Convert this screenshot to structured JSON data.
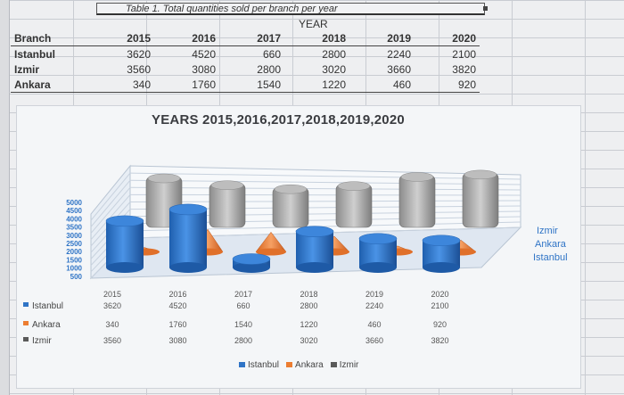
{
  "table": {
    "caption": "Table 1. Total quantities sold per branch per year",
    "year_header": "YEAR",
    "branch_header": "Branch",
    "years": [
      "2015",
      "2016",
      "2017",
      "2018",
      "2019",
      "2020"
    ],
    "rows": [
      {
        "branch": "Istanbul",
        "values": [
          "3620",
          "4520",
          "660",
          "2800",
          "2240",
          "2100"
        ]
      },
      {
        "branch": "Izmir",
        "values": [
          "3560",
          "3080",
          "2800",
          "3020",
          "3660",
          "3820"
        ]
      },
      {
        "branch": "Ankara",
        "values": [
          "340",
          "1760",
          "1540",
          "1220",
          "460",
          "920"
        ]
      }
    ]
  },
  "chart_data": {
    "type": "bar",
    "title": "YEARS 2015,2016,2017,2018,2019,2020",
    "categories": [
      "2015",
      "2016",
      "2017",
      "2018",
      "2019",
      "2020"
    ],
    "series": [
      {
        "name": "Istanbul",
        "values": [
          3620,
          4520,
          660,
          2800,
          2240,
          2100
        ],
        "shape": "cylinder",
        "color": "#2f74c6"
      },
      {
        "name": "Ankara",
        "values": [
          340,
          1760,
          1540,
          1220,
          460,
          920
        ],
        "shape": "cone",
        "color": "#ec7d31"
      },
      {
        "name": "Izmir",
        "values": [
          3560,
          3080,
          2800,
          3020,
          3660,
          3820
        ],
        "shape": "box",
        "color": "#a5a5a5"
      }
    ],
    "ylim": [
      0,
      5000
    ],
    "yticks": [
      "5000",
      "4500",
      "4000",
      "3500",
      "3000",
      "2500",
      "2000",
      "1500",
      "1000",
      "500"
    ],
    "depth_labels": [
      "Izmir",
      "Ankara",
      "Istanbul"
    ],
    "data_table_rows": [
      {
        "name": "Istanbul",
        "values": [
          "3620",
          "4520",
          "660",
          "2800",
          "2240",
          "2100"
        ]
      },
      {
        "name": "Ankara",
        "values": [
          "340",
          "1760",
          "1540",
          "1220",
          "460",
          "920"
        ]
      },
      {
        "name": "Izmir",
        "values": [
          "3560",
          "3080",
          "2800",
          "3020",
          "3660",
          "3820"
        ]
      }
    ],
    "legend": [
      "Istanbul",
      "Ankara",
      "Izmir"
    ],
    "legend_position": "bottom"
  }
}
